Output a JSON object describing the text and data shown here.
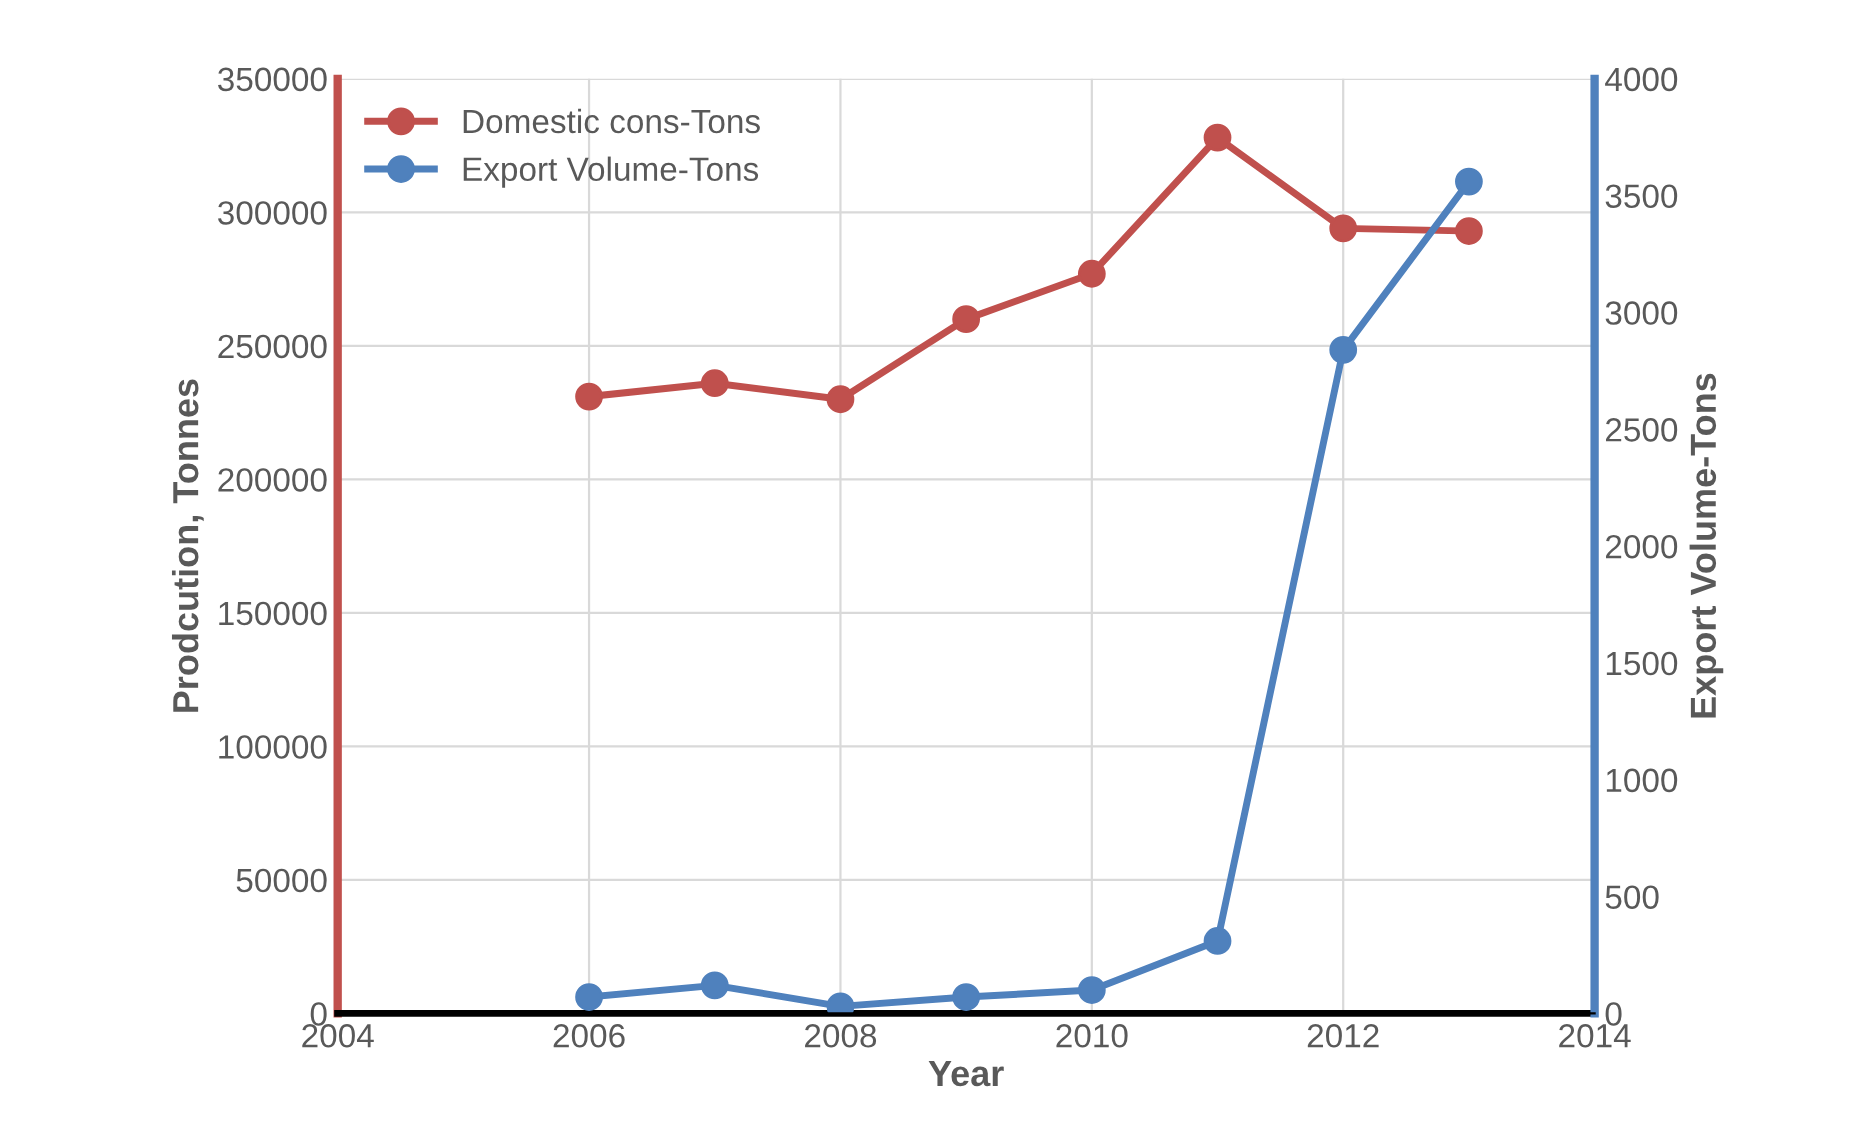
{
  "chart_data": {
    "type": "line",
    "xlabel": "Year",
    "ylabel": "Prodcution, Tonnes",
    "y2label": "Export Volume-Tons",
    "x": [
      2006,
      2007,
      2008,
      2009,
      2010,
      2011,
      2012,
      2013
    ],
    "series": [
      {
        "name": "Domestic cons-Tons",
        "color": "#c0504d",
        "values": [
          231000,
          236000,
          230000,
          260000,
          277000,
          328000,
          294000,
          293000
        ]
      },
      {
        "name": "Export Volume-Tons",
        "color": "#4f81bd",
        "axis": "y2",
        "values": [
          70,
          120,
          30,
          70,
          100,
          310,
          2840,
          3560
        ]
      }
    ],
    "xlim": [
      2004,
      2014
    ],
    "xticks": [
      2004,
      2006,
      2008,
      2010,
      2012,
      2014
    ],
    "ylim": [
      0,
      350000
    ],
    "yticks": [
      0,
      50000,
      100000,
      150000,
      200000,
      250000,
      300000,
      350000
    ],
    "y2lim": [
      0,
      4000
    ],
    "y2ticks": [
      0,
      500,
      1000,
      1500,
      2000,
      2500,
      3000,
      3500,
      4000
    ],
    "grid": true,
    "legend": "top left",
    "marker": "circle",
    "line_style": "solid"
  }
}
